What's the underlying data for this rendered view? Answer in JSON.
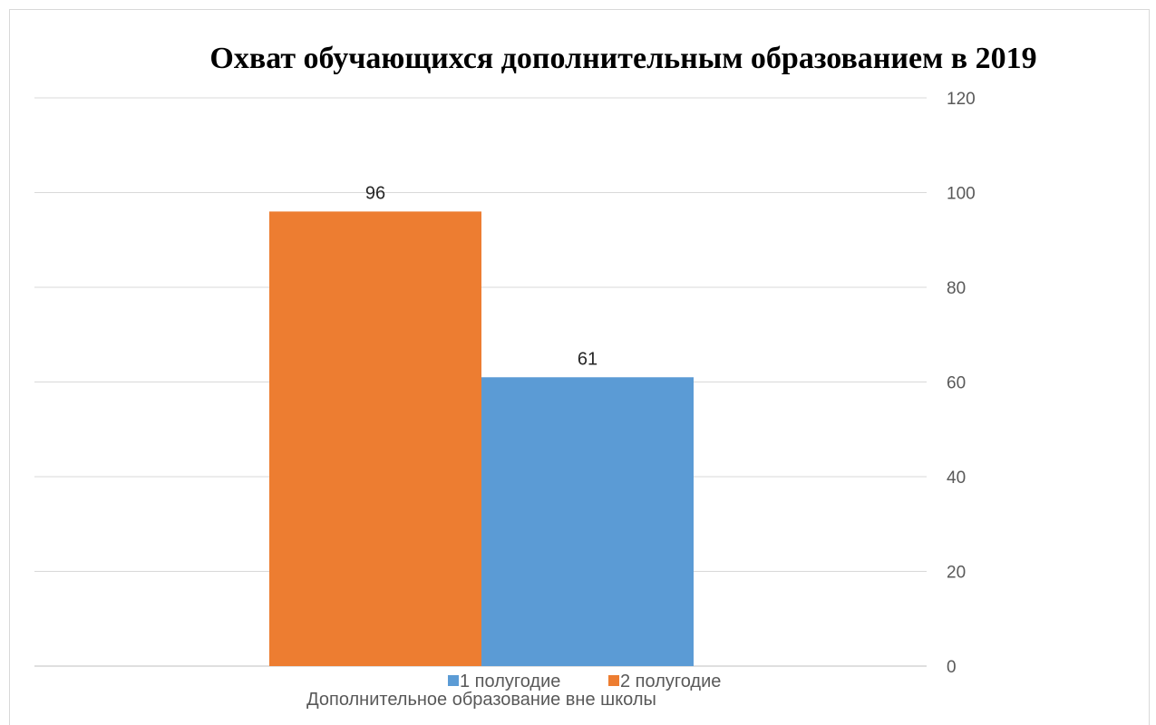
{
  "chart_data": {
    "type": "bar",
    "title": "Охват обучающихся дополнительным образованием в 2019",
    "categories": [
      "Дополнительное образование вне школы"
    ],
    "series": [
      {
        "name": "2 полугодие",
        "values": [
          96
        ],
        "color": "#ED7D31"
      },
      {
        "name": "1 полугодие",
        "values": [
          61
        ],
        "color": "#5B9BD5"
      }
    ],
    "ylim": [
      0,
      120
    ],
    "yticks": [
      0,
      20,
      40,
      60,
      80,
      100,
      120
    ],
    "grid": true,
    "yaxis_side": "right",
    "legend": {
      "placement": "bottom",
      "entries": [
        {
          "label": "1 полугодие",
          "color": "#5B9BD5"
        },
        {
          "label": "2 полугодие",
          "color": "#ED7D31"
        }
      ]
    },
    "data_labels": true
  }
}
